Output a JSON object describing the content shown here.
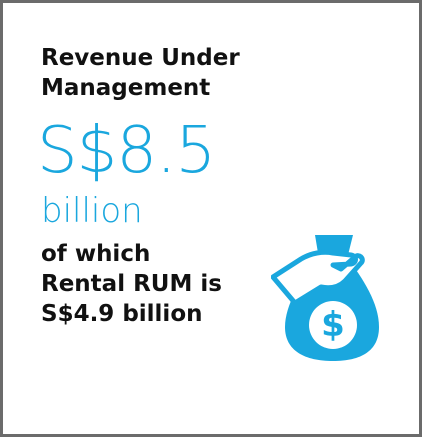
{
  "heading": "Revenue Under Management",
  "amount": "S$8.5",
  "unit": "billion",
  "note": "of which Rental RUM is S$4.9 billion"
}
